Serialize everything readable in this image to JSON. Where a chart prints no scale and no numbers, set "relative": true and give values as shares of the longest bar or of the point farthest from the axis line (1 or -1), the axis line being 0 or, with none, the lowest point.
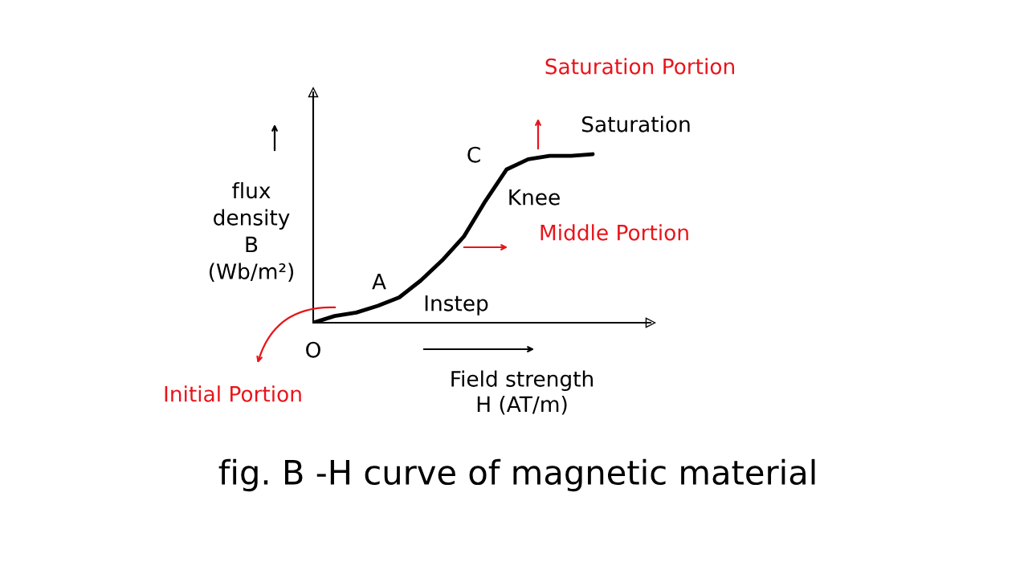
{
  "chart_data": {
    "type": "line",
    "title": "fig. B -H curve of magnetic material",
    "xlabel": "Field strength H (AT/m)",
    "ylabel": "flux density B (Wb/m²)",
    "relative": true,
    "categories": [
      null,
      null,
      null,
      null,
      null,
      null,
      null,
      null,
      null,
      null,
      null,
      null,
      null,
      null
    ],
    "series": [
      {
        "color": "#000000",
        "values": [
          0,
          0.04,
          0.06,
          0.1,
          0.15,
          0.25,
          0.37,
          0.51,
          0.72,
          0.91,
          0.97,
          0.99,
          0.99,
          1
        ]
      }
    ],
    "annotations": [
      "Saturation Portion",
      "Saturation",
      "C",
      "Knee",
      "Middle Portion",
      "A",
      "Instep",
      "O",
      "Initial Portion"
    ]
  }
}
